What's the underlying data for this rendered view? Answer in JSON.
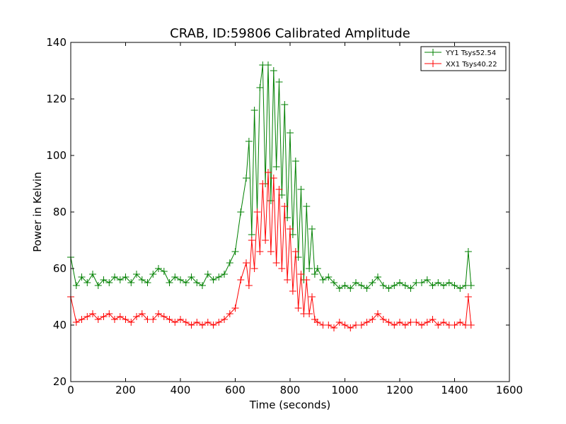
{
  "chart_data": {
    "type": "line",
    "title": "CRAB, ID:59806 Calibrated Amplitude",
    "xlabel": "Time (seconds)",
    "ylabel": "Power in Kelvin",
    "xlim": [
      0,
      1600
    ],
    "ylim": [
      20,
      140
    ],
    "x_ticks": [
      0,
      200,
      400,
      600,
      800,
      1000,
      1200,
      1400,
      1600
    ],
    "y_ticks": [
      20,
      40,
      60,
      80,
      100,
      120,
      140
    ],
    "grid": false,
    "legend_position": "top-right",
    "marker": "+",
    "series": [
      {
        "name": "YY1 Tsys52.54",
        "color": "#008000",
        "x": [
          0,
          20,
          40,
          60,
          80,
          100,
          120,
          140,
          160,
          180,
          200,
          220,
          240,
          260,
          280,
          300,
          320,
          340,
          360,
          380,
          400,
          420,
          440,
          460,
          480,
          500,
          520,
          540,
          560,
          580,
          600,
          620,
          640,
          650,
          660,
          670,
          680,
          690,
          700,
          710,
          720,
          730,
          740,
          750,
          760,
          770,
          780,
          790,
          800,
          810,
          820,
          830,
          840,
          850,
          860,
          870,
          880,
          890,
          900,
          920,
          940,
          960,
          980,
          1000,
          1020,
          1040,
          1060,
          1080,
          1100,
          1120,
          1140,
          1160,
          1180,
          1200,
          1220,
          1240,
          1260,
          1280,
          1300,
          1320,
          1340,
          1360,
          1380,
          1400,
          1420,
          1440,
          1450,
          1460
        ],
        "y": [
          64,
          54,
          57,
          55,
          58,
          54,
          56,
          55,
          57,
          56,
          57,
          55,
          58,
          56,
          55,
          58,
          60,
          59,
          55,
          57,
          56,
          55,
          57,
          55,
          54,
          58,
          56,
          57,
          58,
          62,
          66,
          80,
          92,
          105,
          72,
          116,
          80,
          124,
          132,
          90,
          132,
          84,
          130,
          96,
          126,
          86,
          118,
          78,
          108,
          72,
          98,
          64,
          88,
          56,
          82,
          60,
          74,
          58,
          60,
          56,
          57,
          55,
          53,
          54,
          53,
          55,
          54,
          53,
          55,
          57,
          54,
          53,
          54,
          55,
          54,
          53,
          55,
          55,
          56,
          54,
          55,
          54,
          55,
          54,
          53,
          54,
          66,
          54
        ]
      },
      {
        "name": "XX1 Tsys40.22",
        "color": "#ff0000",
        "x": [
          0,
          20,
          40,
          60,
          80,
          100,
          120,
          140,
          160,
          180,
          200,
          220,
          240,
          260,
          280,
          300,
          320,
          340,
          360,
          380,
          400,
          420,
          440,
          460,
          480,
          500,
          520,
          540,
          560,
          580,
          600,
          620,
          640,
          650,
          660,
          670,
          680,
          690,
          700,
          710,
          720,
          730,
          740,
          750,
          760,
          770,
          780,
          790,
          800,
          810,
          820,
          830,
          840,
          850,
          860,
          870,
          880,
          890,
          900,
          920,
          940,
          960,
          980,
          1000,
          1020,
          1040,
          1060,
          1080,
          1100,
          1120,
          1140,
          1160,
          1180,
          1200,
          1220,
          1240,
          1260,
          1280,
          1300,
          1320,
          1340,
          1360,
          1380,
          1400,
          1420,
          1440,
          1450,
          1460
        ],
        "y": [
          50,
          41,
          42,
          43,
          44,
          42,
          43,
          44,
          42,
          43,
          42,
          41,
          43,
          44,
          42,
          42,
          44,
          43,
          42,
          41,
          42,
          41,
          40,
          41,
          40,
          41,
          40,
          41,
          42,
          44,
          46,
          56,
          62,
          54,
          70,
          60,
          80,
          66,
          90,
          70,
          94,
          66,
          92,
          62,
          88,
          60,
          82,
          56,
          74,
          52,
          66,
          46,
          58,
          44,
          56,
          44,
          50,
          42,
          41,
          40,
          40,
          39,
          41,
          40,
          39,
          40,
          40,
          41,
          42,
          44,
          42,
          41,
          40,
          41,
          40,
          41,
          41,
          40,
          41,
          42,
          40,
          41,
          40,
          40,
          41,
          40,
          50,
          40
        ]
      }
    ]
  }
}
